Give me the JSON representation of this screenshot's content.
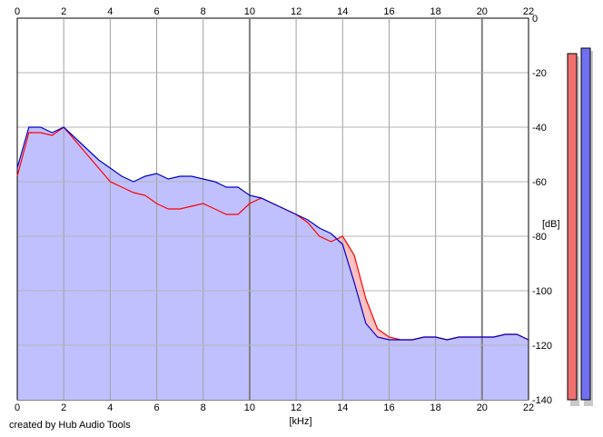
{
  "credit": "created by Hub Audio Tools",
  "chart_data": {
    "type": "area",
    "xlabel": "[kHz]",
    "ylabel": "[dB]",
    "xlim": [
      0,
      22
    ],
    "ylim": [
      -140,
      0
    ],
    "x_ticks": [
      0,
      2,
      4,
      6,
      8,
      10,
      12,
      14,
      16,
      18,
      20,
      22
    ],
    "y_ticks": [
      0,
      -20,
      -40,
      -60,
      -80,
      -100,
      -120,
      -140
    ],
    "y_tick_labels": [
      "0",
      "-20",
      "-40",
      "-60",
      "-80",
      "-100",
      "-120",
      "-140"
    ],
    "grid": true,
    "x_axis_labels": "top and bottom",
    "y_axis_labels": "right",
    "x": [
      0,
      0.5,
      1,
      1.5,
      2,
      2.5,
      3,
      3.5,
      4,
      4.5,
      5,
      5.5,
      6,
      6.5,
      7,
      7.5,
      8,
      8.5,
      9,
      9.5,
      10,
      10.5,
      11,
      11.5,
      12,
      12.5,
      13,
      13.5,
      14,
      14.5,
      15,
      15.5,
      16,
      16.5,
      17,
      17.5,
      18,
      18.5,
      19,
      19.5,
      20,
      20.5,
      21,
      21.5,
      22
    ],
    "series": [
      {
        "color": "#ff0000",
        "fill": "#ffc0c0",
        "values": [
          -58,
          -42,
          -42,
          -43,
          -40,
          -45,
          -50,
          -55,
          -60,
          -62,
          -64,
          -65,
          -68,
          -70,
          -70,
          -69,
          -68,
          -70,
          -72,
          -72,
          -68,
          -66,
          -68,
          -70,
          -72,
          -75,
          -80,
          -82,
          -80,
          -87,
          -103,
          -114,
          -117,
          -118,
          -118,
          -117,
          -117,
          -118,
          -117,
          -117,
          -117,
          -117,
          -116,
          -116,
          -118
        ]
      },
      {
        "color": "#0000cc",
        "fill": "#c0c0ff",
        "values": [
          -55,
          -40,
          -40,
          -42,
          -40,
          -44,
          -48,
          -52,
          -55,
          -58,
          -60,
          -58,
          -57,
          -59,
          -58,
          -58,
          -59,
          -60,
          -62,
          -62,
          -65,
          -66,
          -68,
          -70,
          -72,
          -74,
          -77,
          -79,
          -83,
          -97,
          -112,
          -117,
          -118,
          -118,
          -118,
          -117,
          -117,
          -118,
          -117,
          -117,
          -117,
          -117,
          -116,
          -116,
          -118
        ]
      }
    ],
    "level_meters": [
      {
        "color": "#f07070",
        "level_db": -13
      },
      {
        "color": "#7070f0",
        "level_db": -11
      }
    ]
  }
}
